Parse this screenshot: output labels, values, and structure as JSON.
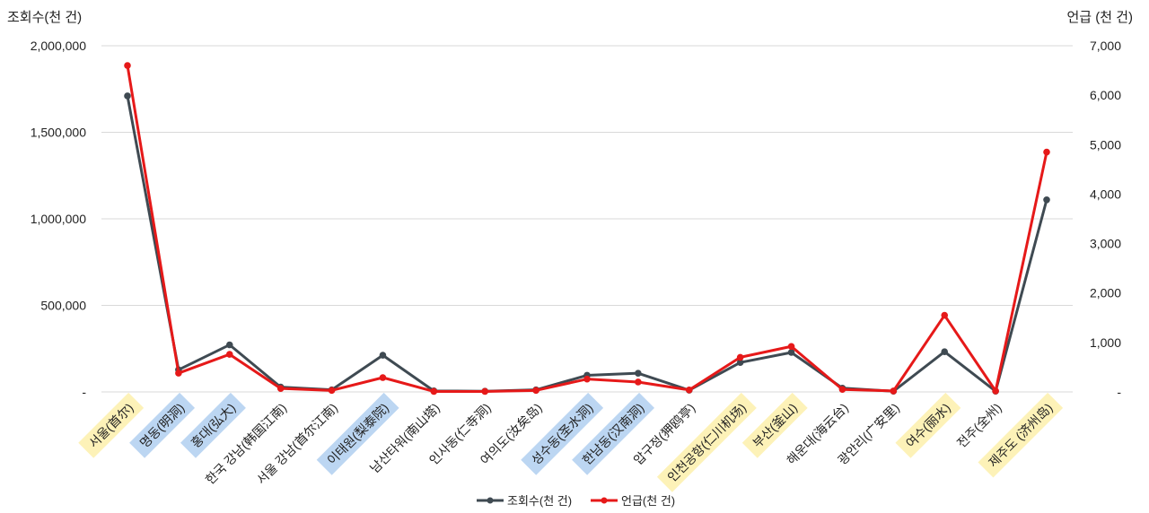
{
  "chart_data": {
    "type": "line",
    "title": "",
    "categories": [
      "서울(首尔)",
      "명동(明洞)",
      "홍대(弘大)",
      "한국 강남(韩国江南)",
      "서울 강남(首尔江南)",
      "이태원(梨泰院)",
      "남산타워(南山塔)",
      "인사동(仁寺洞)",
      "여의도(汝矣岛)",
      "성수동(圣水洞)",
      "한남동(汉南洞)",
      "압구정(狎鸥亭)",
      "인천공항(仁川机场)",
      "부산(釜山)",
      "해운대(海云台)",
      "광안리(广安里)",
      "여수(丽水)",
      "전주(全州)",
      "제주도 (济州岛)"
    ],
    "category_highlight": [
      "yellow",
      "blue",
      "blue",
      "none",
      "none",
      "blue",
      "none",
      "none",
      "none",
      "blue",
      "blue",
      "none",
      "yellow",
      "yellow",
      "none",
      "none",
      "yellow",
      "none",
      "yellow"
    ],
    "highlight_colors": {
      "yellow": "#fdf2b8",
      "blue": "#bcd6f2"
    },
    "y_left": {
      "label": "조회수(천 건)",
      "range": [
        0,
        2000000
      ],
      "ticks": [
        "-",
        "500,000",
        "1,000,000",
        "1,500,000",
        "2,000,000"
      ],
      "tick_values": [
        0,
        500000,
        1000000,
        1500000,
        2000000
      ]
    },
    "y_right": {
      "label": "언급 (천 건)",
      "range": [
        0,
        7000
      ],
      "ticks": [
        "-",
        "1,000",
        "2,000",
        "3,000",
        "4,000",
        "5,000",
        "6,000",
        "7,000"
      ],
      "tick_values": [
        0,
        1000,
        2000,
        3000,
        4000,
        5000,
        6000,
        7000
      ]
    },
    "series": [
      {
        "name": "조회수(천 건)",
        "axis": "left",
        "color": "#3f4a52",
        "values": [
          1710000,
          128000,
          272000,
          28000,
          12000,
          212000,
          6000,
          4000,
          12000,
          96000,
          108000,
          10000,
          170000,
          228000,
          22000,
          4000,
          232000,
          4000,
          1110000
        ]
      },
      {
        "name": "언급(천 건)",
        "axis": "right",
        "color": "#e61919",
        "values": [
          6600,
          380,
          760,
          70,
          30,
          290,
          10,
          10,
          30,
          260,
          200,
          40,
          700,
          920,
          50,
          20,
          1550,
          20,
          4850
        ]
      }
    ],
    "legend_position": "bottom",
    "grid": true
  }
}
